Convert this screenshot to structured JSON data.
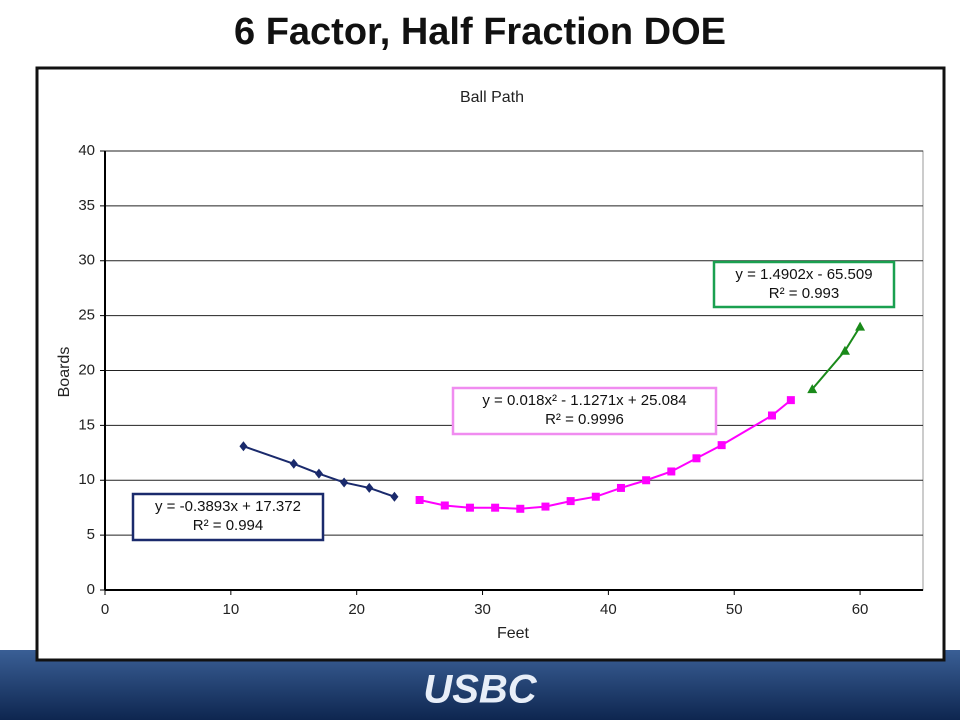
{
  "slide_title": "6 Factor, Half Fraction DOE",
  "footer": {
    "logo": "USBC"
  },
  "chart_data": {
    "type": "scatter",
    "title": "Ball Path",
    "x_label": "Feet",
    "y_label": "Boards",
    "xlim": [
      0,
      65
    ],
    "xticks": [
      0,
      10,
      20,
      30,
      40,
      50,
      60
    ],
    "ylim": [
      0,
      40
    ],
    "yticks": [
      0,
      5,
      10,
      15,
      20,
      25,
      30,
      35,
      40
    ],
    "grid": "y",
    "series": [
      {
        "color": "#1a2a6c",
        "marker": "diamond",
        "x": [
          11,
          15,
          17,
          19,
          21,
          23
        ],
        "values": [
          13.1,
          11.5,
          10.6,
          9.8,
          9.3,
          8.5
        ]
      },
      {
        "color": "#ff00ff",
        "marker": "square",
        "x": [
          25,
          27,
          29,
          31,
          33,
          35,
          37,
          39,
          41,
          43,
          45,
          47,
          49,
          53,
          54.5
        ],
        "values": [
          8.2,
          7.7,
          7.5,
          7.5,
          7.4,
          7.6,
          8.1,
          8.5,
          9.3,
          10,
          10.8,
          12,
          13.2,
          15.9,
          17.3
        ]
      },
      {
        "color": "#1a8a1a",
        "marker": "triangle",
        "x": [
          56.2,
          58.8,
          60
        ],
        "values": [
          18.3,
          21.8,
          24
        ]
      }
    ],
    "annotations": [
      {
        "color": "#1a2a6c",
        "lines": [
          "y = -0.3893x + 17.372",
          "R² = 0.994"
        ]
      },
      {
        "color": "#f08cf0",
        "lines": [
          "y = 0.018x² - 1.1271x + 25.084",
          "R² = 0.9996"
        ]
      },
      {
        "color": "#1aa050",
        "lines": [
          "y = 1.4902x - 65.509",
          "R² = 0.993"
        ]
      }
    ]
  }
}
